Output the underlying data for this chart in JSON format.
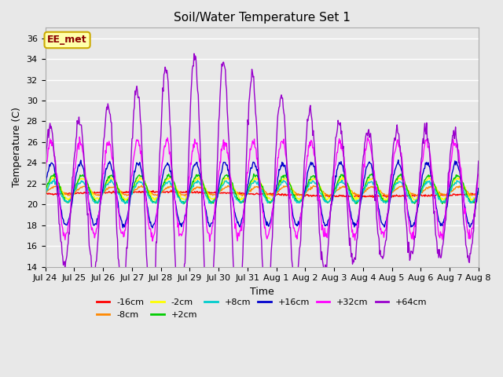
{
  "title": "Soil/Water Temperature Set 1",
  "xlabel": "Time",
  "ylabel": "Temperature (C)",
  "ylim": [
    14,
    37
  ],
  "yticks": [
    14,
    16,
    18,
    20,
    22,
    24,
    26,
    28,
    30,
    32,
    34,
    36
  ],
  "annotation_text": "EE_met",
  "annotation_color": "#8B0000",
  "annotation_bg": "#FFFFAA",
  "annotation_border": "#CCAA00",
  "plot_bg": "#E8E8E8",
  "grid_color": "#FFFFFF",
  "series": [
    {
      "label": "-16cm",
      "color": "#FF0000"
    },
    {
      "label": "-8cm",
      "color": "#FF8800"
    },
    {
      "label": "-2cm",
      "color": "#FFFF00"
    },
    {
      "label": "+2cm",
      "color": "#00CC00"
    },
    {
      "label": "+8cm",
      "color": "#00CCCC"
    },
    {
      "label": "+16cm",
      "color": "#0000CC"
    },
    {
      "label": "+32cm",
      "color": "#FF00FF"
    },
    {
      "label": "+64cm",
      "color": "#9900CC"
    }
  ],
  "x_tick_labels": [
    "Jul 24",
    "Jul 25",
    "Jul 26",
    "Jul 27",
    "Jul 28",
    "Jul 29",
    "Jul 30",
    "Jul 31",
    "Aug 1",
    "Aug 2",
    "Aug 3",
    "Aug 4",
    "Aug 5",
    "Aug 6",
    "Aug 7",
    "Aug 8"
  ],
  "n_days": 15,
  "pts_per_day": 48
}
